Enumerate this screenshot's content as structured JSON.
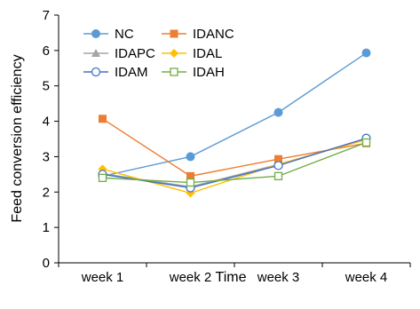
{
  "chart_data": {
    "type": "line",
    "title": "",
    "xlabel": "Time",
    "ylabel": "Feed conversion efficiency",
    "categories": [
      "week 1",
      "week 2",
      "week 3",
      "week 4"
    ],
    "ylim": [
      0,
      7
    ],
    "yticks": [
      "0",
      "1",
      "2",
      "3",
      "4",
      "5",
      "6",
      "7"
    ],
    "grid": false,
    "legend_position": "top-left",
    "series": [
      {
        "name": "NC",
        "values": [
          2.45,
          3.0,
          4.25,
          5.93
        ],
        "color": "#5B9BD5",
        "marker": "filled-circle"
      },
      {
        "name": "IDANC",
        "values": [
          4.07,
          2.45,
          2.93,
          3.38
        ],
        "color": "#ED7D31",
        "marker": "filled-square"
      },
      {
        "name": "IDAPC",
        "values": [
          2.52,
          2.15,
          2.78,
          3.5
        ],
        "color": "#A5A5A5",
        "marker": "filled-triangle"
      },
      {
        "name": "IDAL",
        "values": [
          2.65,
          1.97,
          2.78,
          3.48
        ],
        "color": "#FFC000",
        "marker": "filled-diamond"
      },
      {
        "name": "IDAM",
        "values": [
          2.5,
          2.12,
          2.75,
          3.52
        ],
        "color": "#4472C4",
        "marker": "open-circle"
      },
      {
        "name": "IDAH",
        "values": [
          2.4,
          2.27,
          2.45,
          3.4
        ],
        "color": "#70AD47",
        "marker": "open-square"
      }
    ]
  }
}
